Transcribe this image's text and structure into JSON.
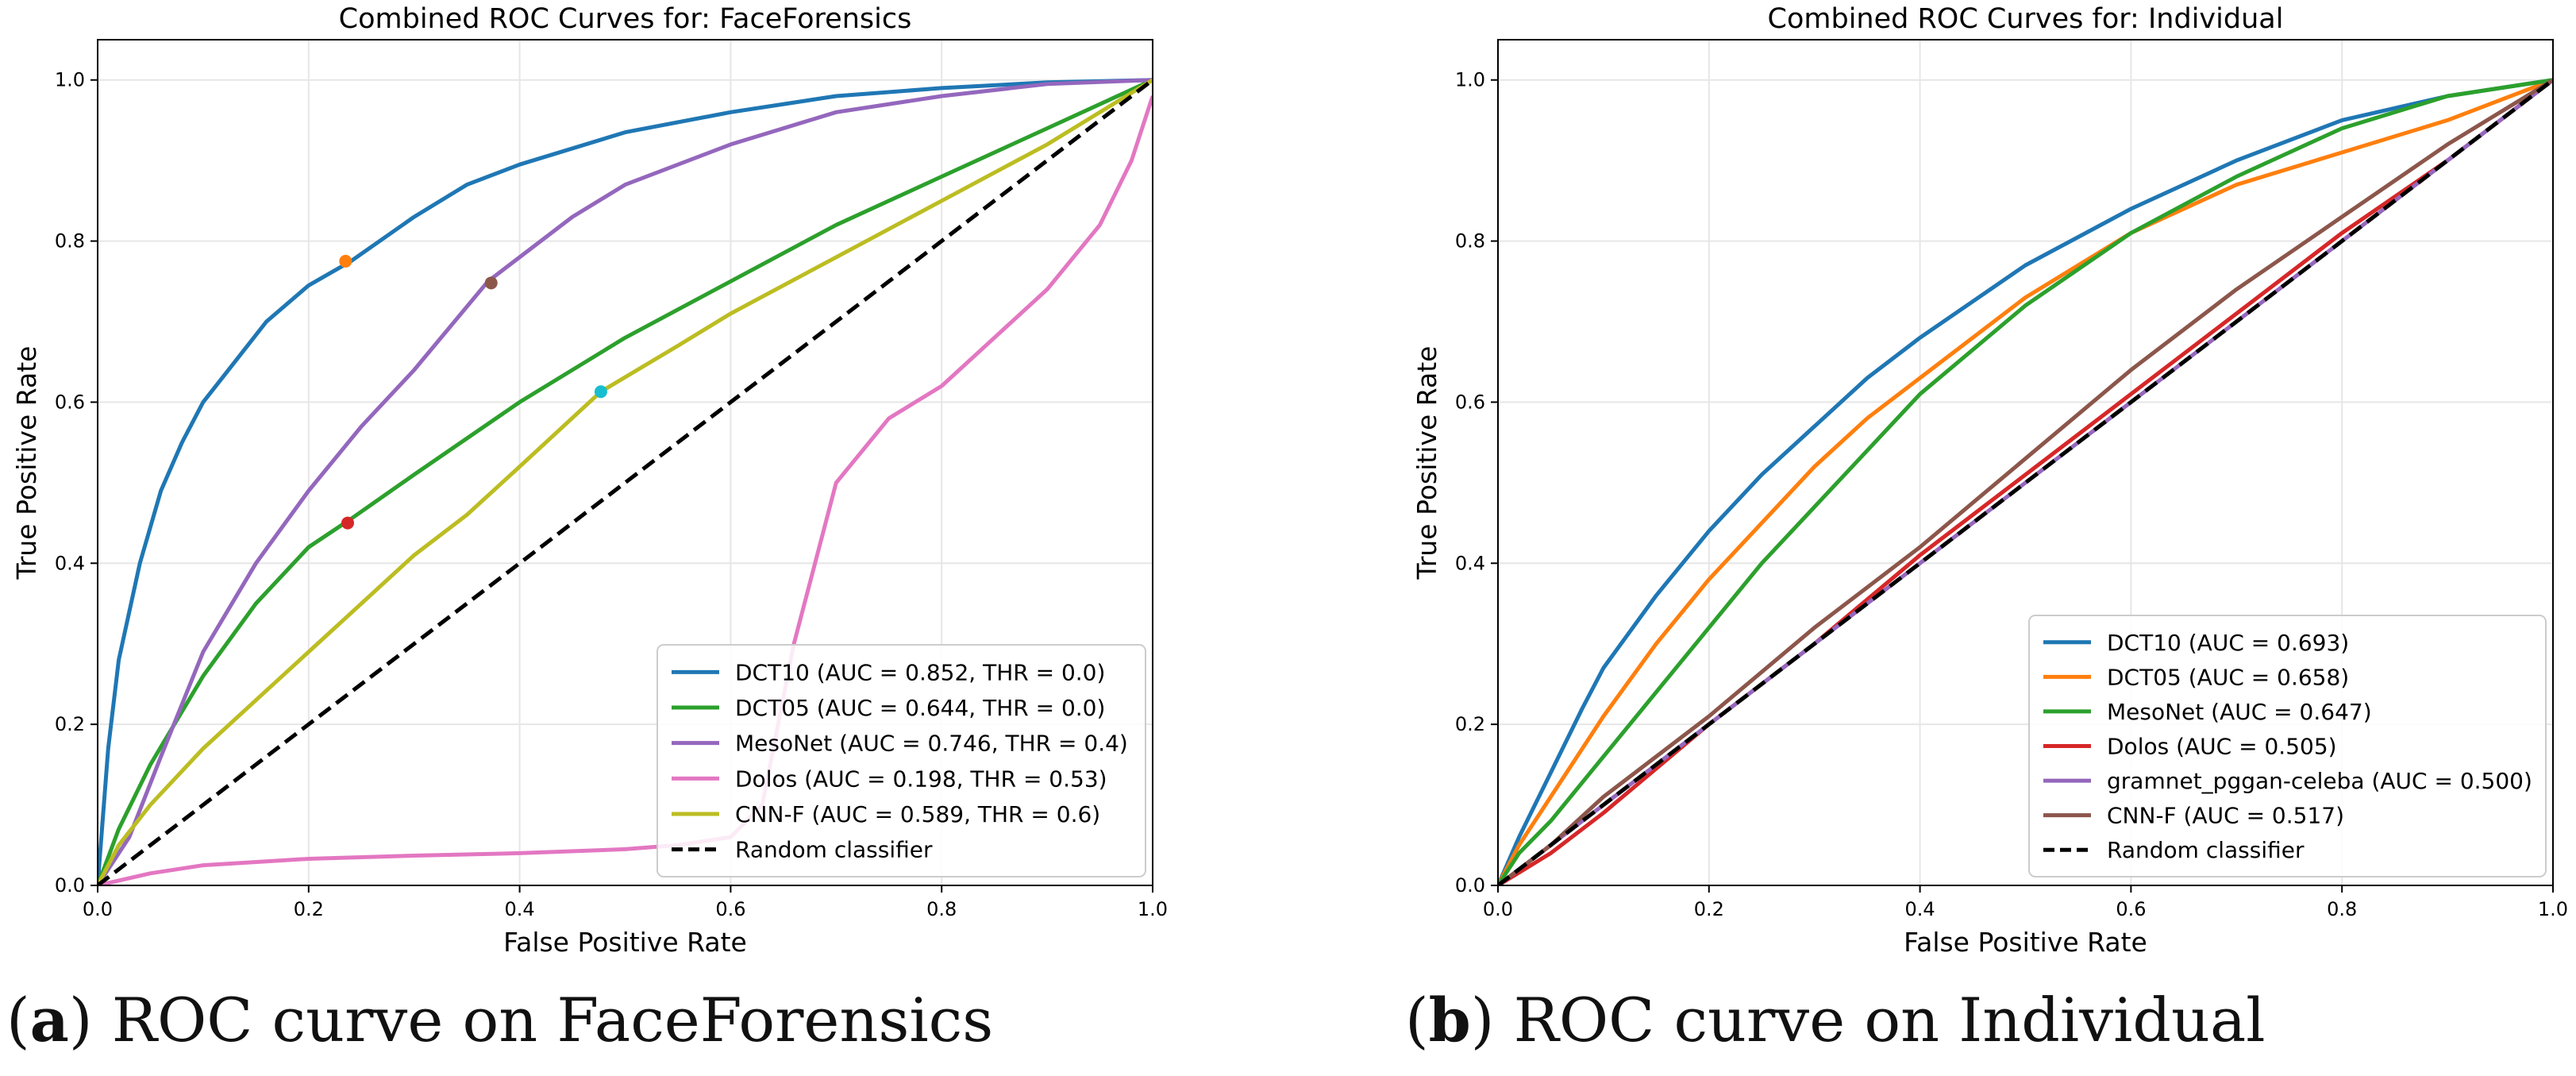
{
  "captions": [
    {
      "letter": "a",
      "text": "ROC curve on FaceForensics"
    },
    {
      "letter": "b",
      "text": "ROC curve on Individual"
    }
  ],
  "chart_data": [
    {
      "type": "line",
      "title": "Combined ROC Curves for: FaceForensics",
      "xlabel": "False Positive Rate",
      "ylabel": "True Positive Rate",
      "xlim": [
        0,
        1
      ],
      "ylim": [
        0,
        1.05
      ],
      "xticks": [
        0,
        0.2,
        0.4,
        0.6,
        0.8,
        1.0
      ],
      "xticklabels": [
        "0.0",
        "0.2",
        "0.4",
        "0.6",
        "0.8",
        "1.0"
      ],
      "yticks": [
        0,
        0.2,
        0.4,
        0.6,
        0.8,
        1.0
      ],
      "yticklabels": [
        "0.0",
        "0.2",
        "0.4",
        "0.6",
        "0.8",
        "1.0"
      ],
      "grid": true,
      "legend_position": "lower-right",
      "series": [
        {
          "name": "DCT10",
          "label": "DCT10 (AUC = 0.852, THR = 0.0)",
          "color": "#1f77b4",
          "x": [
            0,
            0.01,
            0.02,
            0.04,
            0.06,
            0.08,
            0.1,
            0.13,
            0.16,
            0.2,
            0.24,
            0.3,
            0.35,
            0.4,
            0.5,
            0.6,
            0.7,
            0.8,
            0.9,
            1.0
          ],
          "y": [
            0,
            0.17,
            0.28,
            0.4,
            0.49,
            0.55,
            0.6,
            0.65,
            0.7,
            0.745,
            0.775,
            0.83,
            0.87,
            0.895,
            0.935,
            0.96,
            0.98,
            0.99,
            0.997,
            1.0
          ],
          "marker": {
            "x": 0.235,
            "y": 0.775,
            "color": "#ff7f0e"
          }
        },
        {
          "name": "DCT05",
          "label": "DCT05 (AUC = 0.644, THR = 0.0)",
          "color": "#2ca02c",
          "x": [
            0,
            0.02,
            0.05,
            0.1,
            0.15,
            0.2,
            0.24,
            0.3,
            0.4,
            0.5,
            0.6,
            0.7,
            0.8,
            0.9,
            1.0
          ],
          "y": [
            0,
            0.07,
            0.15,
            0.26,
            0.35,
            0.42,
            0.455,
            0.51,
            0.6,
            0.68,
            0.75,
            0.82,
            0.88,
            0.94,
            1.0
          ],
          "marker": {
            "x": 0.237,
            "y": 0.45,
            "color": "#d62728"
          }
        },
        {
          "name": "MesoNet",
          "label": "MesoNet (AUC = 0.746, THR = 0.4)",
          "color": "#9467bd",
          "x": [
            0,
            0.03,
            0.06,
            0.1,
            0.15,
            0.2,
            0.25,
            0.3,
            0.37,
            0.45,
            0.5,
            0.6,
            0.7,
            0.8,
            0.9,
            1.0
          ],
          "y": [
            0,
            0.06,
            0.16,
            0.29,
            0.4,
            0.49,
            0.57,
            0.64,
            0.75,
            0.83,
            0.87,
            0.92,
            0.96,
            0.98,
            0.995,
            1.0
          ],
          "marker": {
            "x": 0.373,
            "y": 0.748,
            "color": "#8c564b"
          }
        },
        {
          "name": "Dolos",
          "label": "Dolos (AUC = 0.198, THR = 0.53)",
          "color": "#e377c2",
          "x": [
            0,
            0.05,
            0.1,
            0.2,
            0.3,
            0.4,
            0.5,
            0.55,
            0.6,
            0.63,
            0.66,
            0.7,
            0.75,
            0.8,
            0.85,
            0.9,
            0.95,
            0.98,
            1.0
          ],
          "y": [
            0,
            0.015,
            0.025,
            0.033,
            0.037,
            0.04,
            0.045,
            0.05,
            0.06,
            0.1,
            0.3,
            0.5,
            0.58,
            0.62,
            0.68,
            0.74,
            0.82,
            0.9,
            0.98
          ]
        },
        {
          "name": "CNN-F",
          "label": "CNN-F (AUC = 0.589, THR = 0.6)",
          "color": "#bcbd22",
          "x": [
            0,
            0.02,
            0.05,
            0.1,
            0.15,
            0.2,
            0.25,
            0.3,
            0.35,
            0.4,
            0.477,
            0.55,
            0.6,
            0.7,
            0.8,
            0.9,
            1.0
          ],
          "y": [
            0,
            0.05,
            0.1,
            0.17,
            0.23,
            0.29,
            0.35,
            0.41,
            0.46,
            0.52,
            0.613,
            0.67,
            0.71,
            0.78,
            0.85,
            0.92,
            1.0
          ],
          "marker": {
            "x": 0.477,
            "y": 0.613,
            "color": "#17becf"
          }
        },
        {
          "name": "Random classifier",
          "label": "Random classifier",
          "color": "#000000",
          "dashed": true,
          "x": [
            0,
            1
          ],
          "y": [
            0,
            1
          ]
        }
      ]
    },
    {
      "type": "line",
      "title": "Combined ROC Curves for: Individual",
      "xlabel": "False Positive Rate",
      "ylabel": "True Positive Rate",
      "xlim": [
        0,
        1
      ],
      "ylim": [
        0,
        1.05
      ],
      "xticks": [
        0,
        0.2,
        0.4,
        0.6,
        0.8,
        1.0
      ],
      "xticklabels": [
        "0.0",
        "0.2",
        "0.4",
        "0.6",
        "0.8",
        "1.0"
      ],
      "yticks": [
        0,
        0.2,
        0.4,
        0.6,
        0.8,
        1.0
      ],
      "yticklabels": [
        "0.0",
        "0.2",
        "0.4",
        "0.6",
        "0.8",
        "1.0"
      ],
      "grid": true,
      "legend_position": "lower-right",
      "series": [
        {
          "name": "DCT10",
          "label": "DCT10 (AUC = 0.693)",
          "color": "#1f77b4",
          "x": [
            0,
            0.02,
            0.05,
            0.08,
            0.1,
            0.15,
            0.2,
            0.25,
            0.3,
            0.35,
            0.4,
            0.5,
            0.6,
            0.7,
            0.8,
            0.9,
            1.0
          ],
          "y": [
            0,
            0.06,
            0.14,
            0.22,
            0.27,
            0.36,
            0.44,
            0.51,
            0.57,
            0.63,
            0.68,
            0.77,
            0.84,
            0.9,
            0.95,
            0.98,
            1.0
          ]
        },
        {
          "name": "DCT05",
          "label": "DCT05 (AUC = 0.658)",
          "color": "#ff7f0e",
          "x": [
            0,
            0.02,
            0.05,
            0.1,
            0.15,
            0.2,
            0.25,
            0.3,
            0.35,
            0.4,
            0.5,
            0.6,
            0.7,
            0.8,
            0.9,
            1.0
          ],
          "y": [
            0,
            0.05,
            0.11,
            0.21,
            0.3,
            0.38,
            0.45,
            0.52,
            0.58,
            0.63,
            0.73,
            0.81,
            0.87,
            0.91,
            0.95,
            1.0
          ]
        },
        {
          "name": "MesoNet",
          "label": "MesoNet (AUC = 0.647)",
          "color": "#2ca02c",
          "x": [
            0,
            0.02,
            0.05,
            0.1,
            0.15,
            0.2,
            0.25,
            0.3,
            0.35,
            0.4,
            0.5,
            0.6,
            0.7,
            0.8,
            0.9,
            1.0
          ],
          "y": [
            0,
            0.04,
            0.08,
            0.16,
            0.24,
            0.32,
            0.4,
            0.47,
            0.54,
            0.61,
            0.72,
            0.81,
            0.88,
            0.94,
            0.98,
            1.0
          ]
        },
        {
          "name": "Dolos",
          "label": "Dolos (AUC = 0.505)",
          "color": "#d62728",
          "x": [
            0,
            0.05,
            0.1,
            0.2,
            0.3,
            0.4,
            0.5,
            0.6,
            0.7,
            0.8,
            0.9,
            1.0
          ],
          "y": [
            0,
            0.04,
            0.09,
            0.2,
            0.3,
            0.41,
            0.51,
            0.61,
            0.71,
            0.81,
            0.9,
            1.0
          ]
        },
        {
          "name": "gramnet_pggan-celeba",
          "label": "gramnet_pggan-celeba (AUC = 0.500)",
          "color": "#9467bd",
          "x": [
            0,
            1
          ],
          "y": [
            0,
            1
          ]
        },
        {
          "name": "CNN-F",
          "label": "CNN-F (AUC = 0.517)",
          "color": "#8c564b",
          "x": [
            0,
            0.05,
            0.1,
            0.2,
            0.3,
            0.4,
            0.5,
            0.6,
            0.7,
            0.8,
            0.9,
            1.0
          ],
          "y": [
            0,
            0.05,
            0.11,
            0.21,
            0.32,
            0.42,
            0.53,
            0.64,
            0.74,
            0.83,
            0.92,
            1.0
          ]
        },
        {
          "name": "Random classifier",
          "label": "Random classifier",
          "color": "#000000",
          "dashed": true,
          "x": [
            0,
            1
          ],
          "y": [
            0,
            1
          ]
        }
      ]
    }
  ]
}
